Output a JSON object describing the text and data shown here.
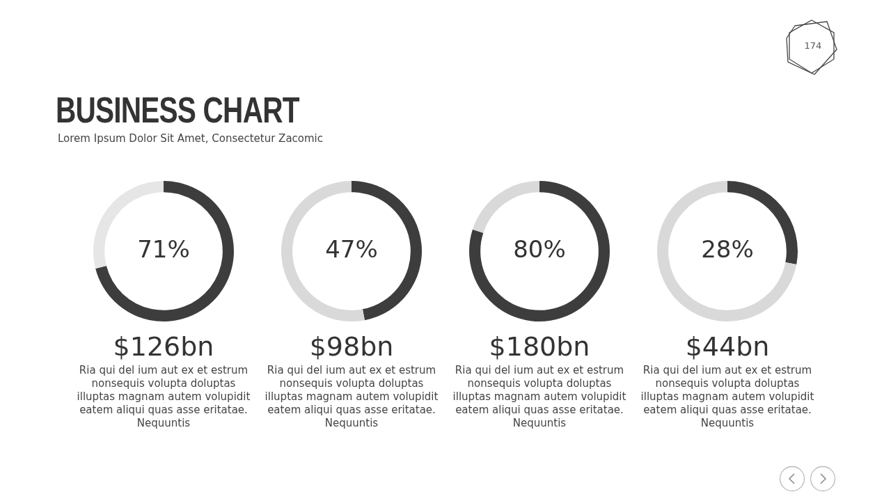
{
  "chart_data": [
    {
      "type": "other",
      "title": "BUSINESS CHART",
      "subtitle": "Lorem Ipsum Dolor Sit Amet, Consectetur Zacomic",
      "annotations": [
        "174"
      ]
    },
    {
      "type": "donut",
      "categories": [
        null,
        null
      ],
      "values": [
        71,
        29
      ],
      "colors": [
        "#3d3d3d",
        "#e6e6e6"
      ],
      "value_labels": [
        "71%",
        null
      ],
      "title": "$126bn",
      "annotations": [
        "Ria qui del ium aut ex et estrum nonsequis volupta doluptas illuptas magnam autem volupidit eatem aliqui quas asse eritatae. Nequuntis"
      ]
    },
    {
      "type": "donut",
      "categories": [
        null,
        null
      ],
      "values": [
        47,
        53
      ],
      "colors": [
        "#3d3d3d",
        "#d9d9d9"
      ],
      "value_labels": [
        "47%",
        null
      ],
      "title": "$98bn",
      "annotations": [
        "Ria qui del ium aut ex et estrum nonsequis volupta doluptas illuptas magnam autem volupidit eatem aliqui quas asse eritatae. Nequuntis"
      ]
    },
    {
      "type": "donut",
      "categories": [
        null,
        null
      ],
      "values": [
        80,
        20
      ],
      "colors": [
        "#3d3d3d",
        "#d9d9d9"
      ],
      "value_labels": [
        "80%",
        null
      ],
      "title": "$180bn",
      "annotations": [
        "Ria qui del ium aut ex et estrum nonsequis volupta doluptas illuptas magnam autem volupidit eatem aliqui quas asse eritatae. Nequuntis"
      ]
    },
    {
      "type": "donut",
      "categories": [
        null,
        null
      ],
      "values": [
        28,
        72
      ],
      "colors": [
        "#3d3d3d",
        "#d9d9d9"
      ],
      "value_labels": [
        "28%",
        null
      ],
      "title": "$44bn",
      "annotations": [
        "Ria qui del ium aut ex et estrum nonsequis volupta doluptas illuptas magnam autem volupidit eatem aliqui quas asse eritatae. Nequuntis"
      ]
    }
  ]
}
